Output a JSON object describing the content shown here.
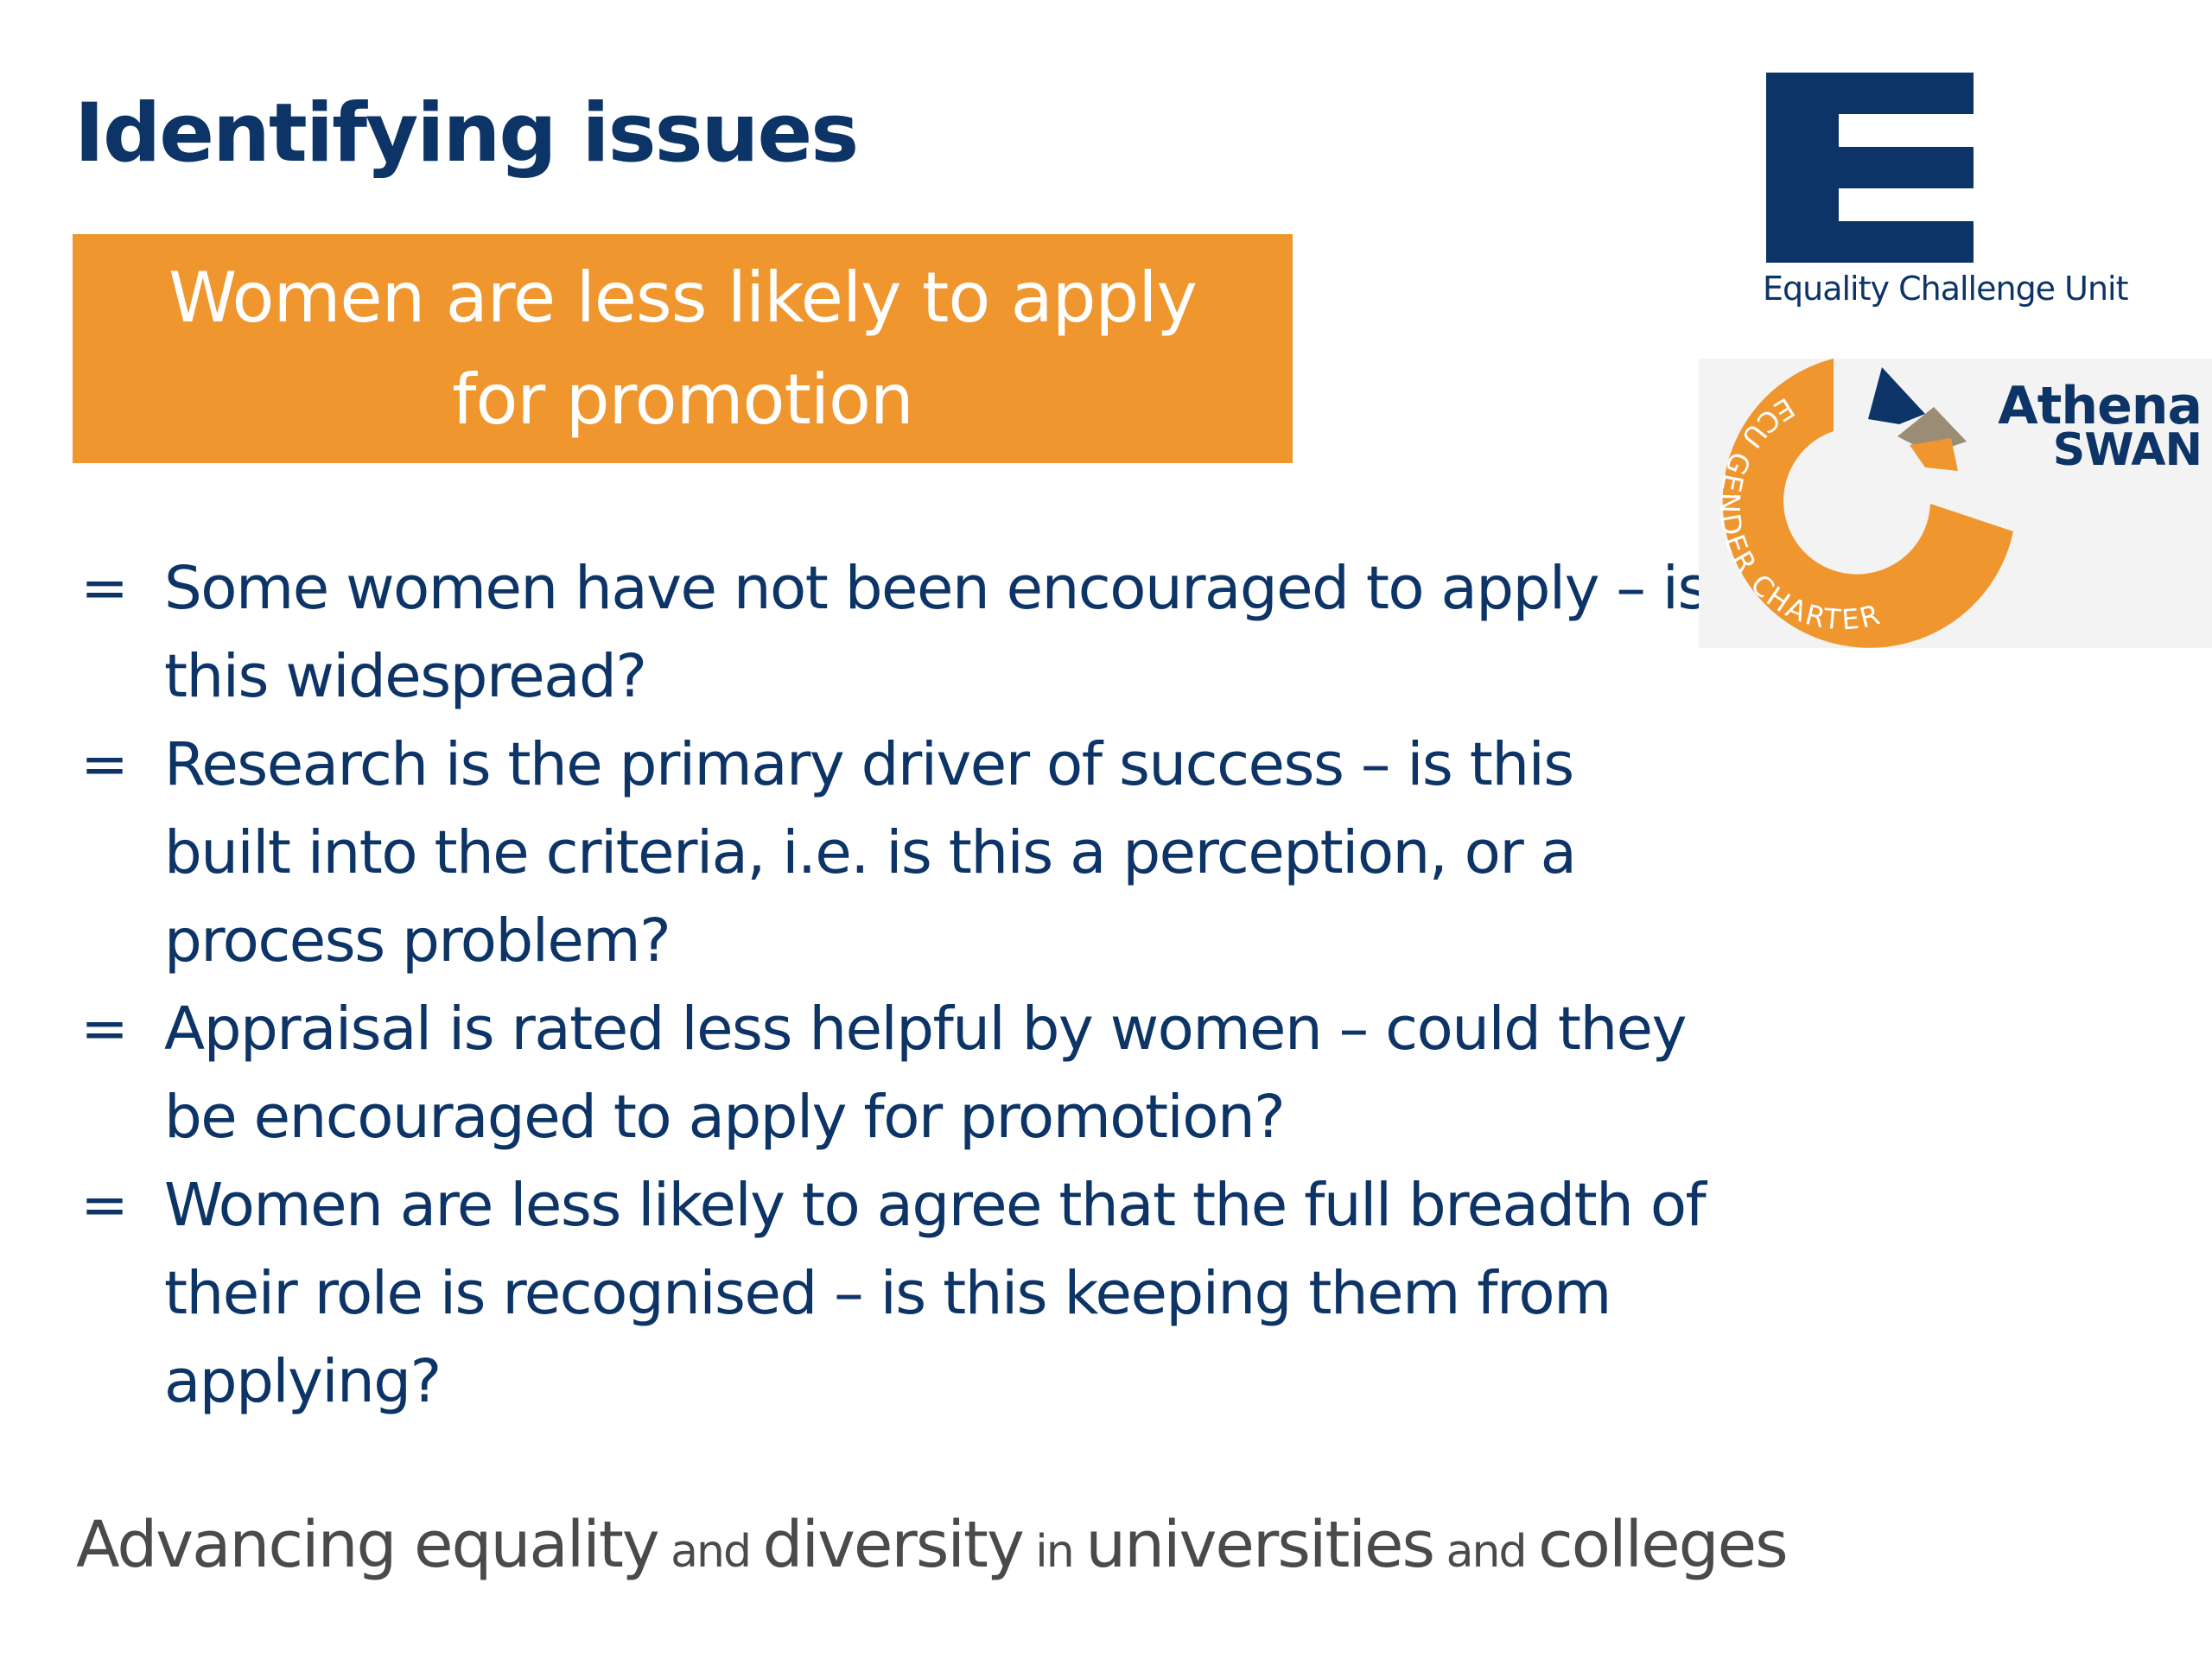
{
  "slide": {
    "title": "Identifying issues",
    "banner": "Women are less likely to apply for promotion",
    "bullet_marker": "=",
    "bullets": [
      "Some women have not been encouraged to apply – is this widespread?",
      "Research is the primary driver of success – is this built into the criteria, i.e. is this a perception, or a process problem?",
      "Appraisal is rated less helpful by women – could they be encouraged to apply for promotion?",
      "Women are less likely to agree that the full breadth of their role is recognised – is this keeping them from applying?"
    ],
    "tagline": {
      "p1": "Advancing equality",
      "p2": " and ",
      "p3": "diversity",
      "p4": " in ",
      "p5": "universities",
      "p6": " and ",
      "p7": "colleges"
    }
  },
  "logos": {
    "ecu_label": "Equality Challenge Unit",
    "athena_line1": "Athena",
    "athena_line2": "SWAN",
    "gender_charter_text": "ECU GENDER CHARTER"
  },
  "colors": {
    "navy": "#0d3466",
    "orange": "#f0962e",
    "gray_text": "#4a4a4a"
  }
}
